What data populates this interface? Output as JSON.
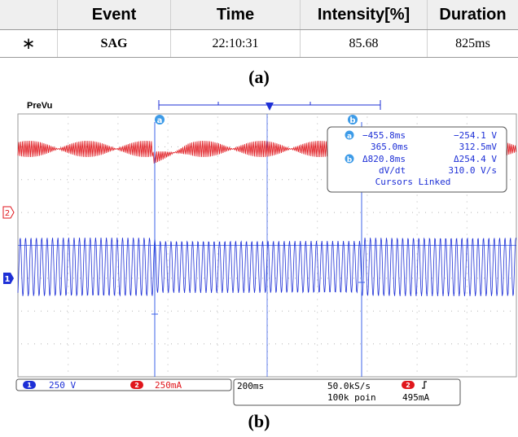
{
  "table": {
    "headers": [
      "Event",
      "Time",
      "Intensity[%]",
      "Duration"
    ],
    "row": {
      "marker": "∗",
      "event": "SAG",
      "time": "22:10:31",
      "intensity": "85.68",
      "duration": "825ms"
    }
  },
  "captions": {
    "a": "(a)",
    "b": "(b)"
  },
  "scope": {
    "top_left_label": "PreVu",
    "cursor_a_label": "a",
    "cursor_b_label": "b",
    "ch1_marker": "1",
    "ch2_marker": "2",
    "readout": {
      "row1_left": "−455.8ms",
      "row1_right": "−254.1 V",
      "row2_left": "365.0ms",
      "row2_right": "312.5mV",
      "row3_left": "Δ820.8ms",
      "row3_right": "Δ254.4 V",
      "row4_left": "dV/dt",
      "row4_right": "310.0 V/s",
      "linked": "Cursors Linked"
    },
    "status": {
      "ch1_scale": "250 V",
      "ch2_scale": "250mA",
      "timebase": "200ms",
      "sample_rate": "50.0kS/s",
      "record_length": "100k poin",
      "trigger_level": "495mA"
    },
    "colors": {
      "ch1": "#1d2fd6",
      "ch2": "#e0161c",
      "cursor": "#3d63e8",
      "grid": "#b4b4b4"
    }
  }
}
